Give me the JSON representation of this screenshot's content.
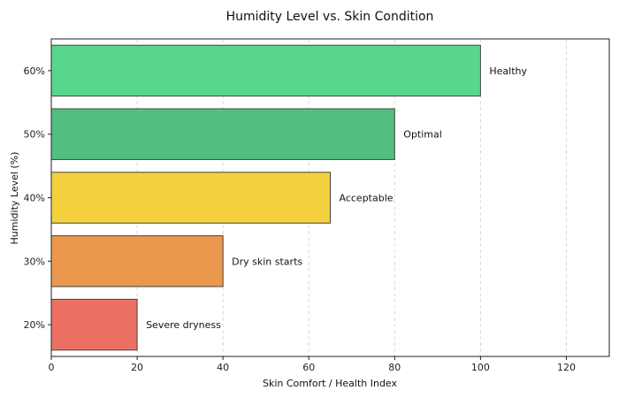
{
  "chart_data": {
    "type": "bar",
    "orientation": "horizontal",
    "title": "Humidity Level vs. Skin Condition",
    "xlabel": "Skin Comfort / Health Index",
    "ylabel": "Humidity Level (%)",
    "xlim": [
      0,
      130
    ],
    "xticks": [
      "0",
      "20",
      "40",
      "60",
      "80",
      "100",
      "120"
    ],
    "grid": "vertical dashed",
    "categories": [
      "20%",
      "30%",
      "40%",
      "50%",
      "60%"
    ],
    "values": [
      20,
      40,
      65,
      80,
      100
    ],
    "annotations": [
      "Severe dryness",
      "Dry skin starts",
      "Acceptable",
      "Optimal",
      "Healthy"
    ],
    "colors": [
      "#ec7063",
      "#eb984e",
      "#f4d03f",
      "#52be80",
      "#58d68d"
    ]
  }
}
